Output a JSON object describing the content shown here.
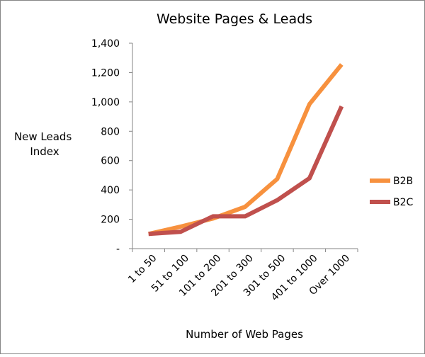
{
  "chart_data": {
    "type": "line",
    "title": "Website Pages & Leads",
    "xlabel": "Number of Web Pages",
    "ylabel_lines": [
      "New Leads",
      "Index"
    ],
    "categories": [
      "1 to 50",
      "51 to 100",
      "101 to 200",
      "201 to 300",
      "301 to 500",
      "401 to 1000",
      "Over 1000"
    ],
    "y_ticks": [
      {
        "value": 0,
        "label": "-"
      },
      {
        "value": 200,
        "label": "200"
      },
      {
        "value": 400,
        "label": "400"
      },
      {
        "value": 600,
        "label": "600"
      },
      {
        "value": 800,
        "label": "800"
      },
      {
        "value": 1000,
        "label": "1,000"
      },
      {
        "value": 1200,
        "label": "1,200"
      },
      {
        "value": 1400,
        "label": "1,400"
      }
    ],
    "ylim": [
      0,
      1400
    ],
    "grid": false,
    "legend_position": "right",
    "series": [
      {
        "name": "B2B",
        "color": "#F7913E",
        "values": [
          100,
          150,
          205,
          285,
          475,
          985,
          1255
        ]
      },
      {
        "name": "B2C",
        "color": "#C0504D",
        "values": [
          100,
          115,
          220,
          220,
          330,
          480,
          970
        ]
      }
    ]
  }
}
